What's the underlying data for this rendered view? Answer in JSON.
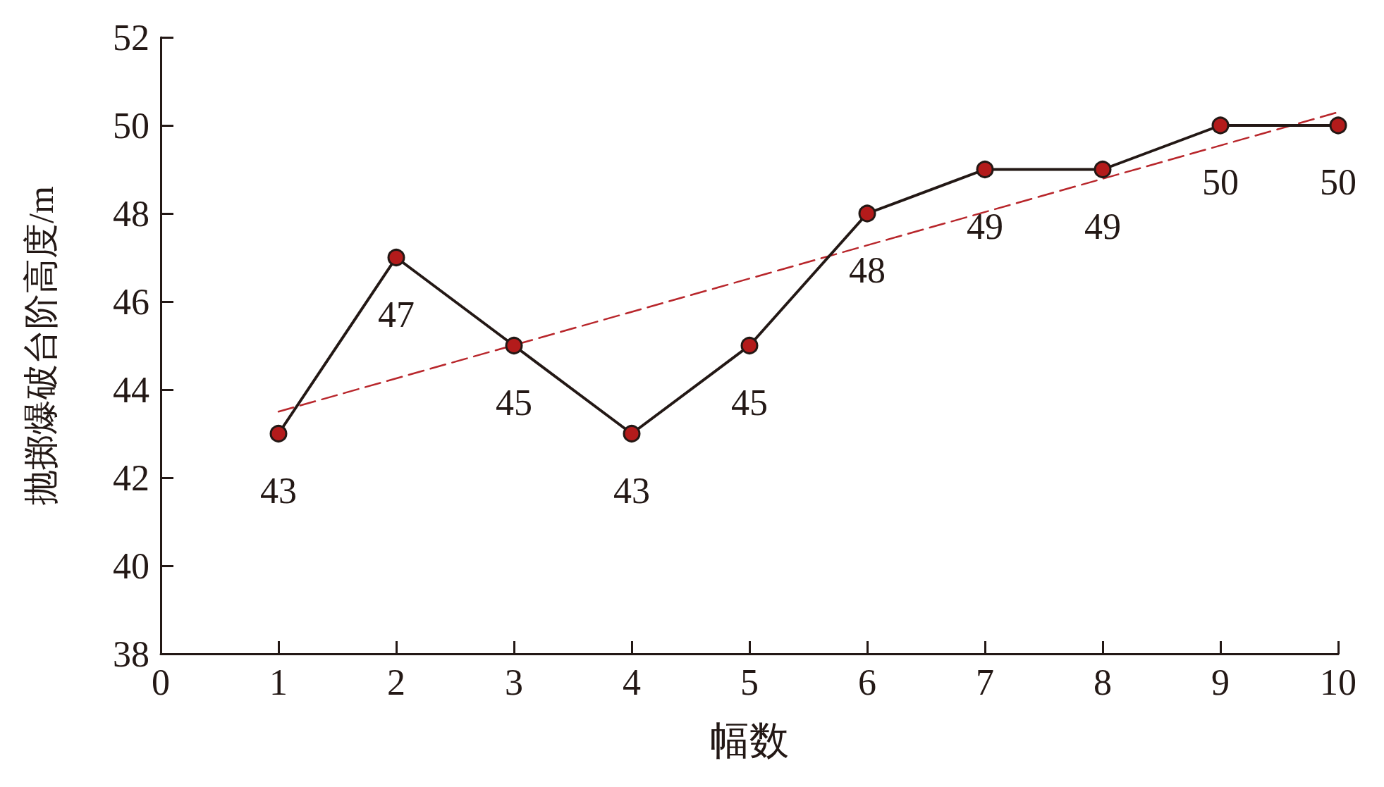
{
  "chart_data": {
    "type": "line",
    "xlabel": "幅数",
    "ylabel": "抛掷爆破台阶高度/m",
    "x": [
      1,
      2,
      3,
      4,
      5,
      6,
      7,
      8,
      9,
      10
    ],
    "series": [
      {
        "color": "#231815",
        "colors": [
          "#b31b1b",
          "#b31b1b",
          "#b31b1b",
          "#b31b1b",
          "#b31b1b",
          "#b31b1b",
          "#b31b1b",
          "#b31b1b",
          "#b31b1b",
          "#b31b1b"
        ],
        "marker": "circle",
        "line_style": "solid",
        "values": [
          43,
          47,
          45,
          43,
          45,
          48,
          49,
          49,
          50,
          50
        ],
        "value_labels": [
          "43",
          "47",
          "45",
          "43",
          "45",
          "48",
          "49",
          "49",
          "50",
          "50"
        ]
      },
      {
        "color": "#b8262b",
        "marker": "none",
        "line_style": "dashed",
        "x": [
          1,
          10
        ],
        "values": [
          43.5,
          50.3
        ]
      }
    ],
    "xlim": [
      0,
      10
    ],
    "xticks": [
      0,
      1,
      2,
      3,
      4,
      5,
      6,
      7,
      8,
      9,
      10
    ],
    "ylim": [
      38,
      52
    ],
    "yticks": [
      38,
      40,
      42,
      44,
      46,
      48,
      50,
      52
    ],
    "grid": false
  }
}
